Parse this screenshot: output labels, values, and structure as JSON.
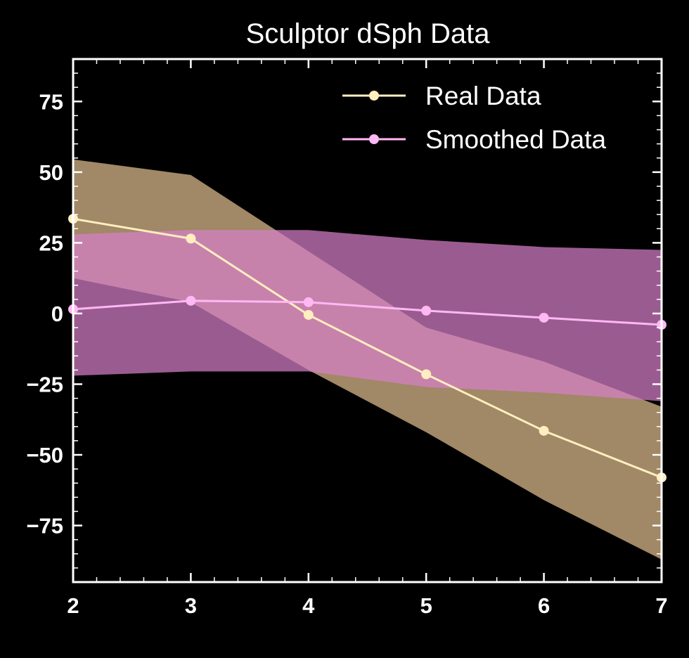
{
  "chart_data": {
    "type": "line",
    "title": "Sculptor dSph Data",
    "xlabel": "",
    "ylabel": "",
    "xlim": [
      2,
      7
    ],
    "ylim": [
      -95,
      90
    ],
    "x_ticks": [
      2,
      3,
      4,
      5,
      6,
      7
    ],
    "x_tick_labels": [
      "2",
      "3",
      "4",
      "5",
      "6",
      "7"
    ],
    "y_ticks": [
      75,
      50,
      25,
      0,
      -25,
      -50,
      -75
    ],
    "y_tick_labels": [
      "75",
      "50",
      "25",
      "0",
      "−25",
      "−50",
      "−75"
    ],
    "legend_position": "top-right",
    "grid": false,
    "series": [
      {
        "name": "Real Data",
        "color": "#ffeec0",
        "band_color": "#c9aa80",
        "band_opacity": 0.8,
        "x": [
          2,
          3,
          4,
          5,
          6,
          7
        ],
        "values": [
          33.5,
          26.5,
          -0.5,
          -21.5,
          -41.5,
          -58
        ],
        "band_lower": [
          12.5,
          4,
          -20,
          -42,
          -66,
          -87
        ],
        "band_upper": [
          54.5,
          49,
          22,
          -5,
          -17,
          -33
        ]
      },
      {
        "name": "Smoothed Data",
        "color": "#ffb8f4",
        "band_color": "#d580c8",
        "band_opacity": 0.72,
        "x": [
          2,
          3,
          4,
          5,
          6,
          7
        ],
        "values": [
          1.5,
          4.5,
          4,
          1,
          -1.5,
          -4
        ],
        "band_lower": [
          -22,
          -20.5,
          -20.5,
          -26,
          -28,
          -31
        ],
        "band_upper": [
          28,
          29.5,
          29.5,
          26,
          23.5,
          22.5
        ]
      }
    ]
  }
}
